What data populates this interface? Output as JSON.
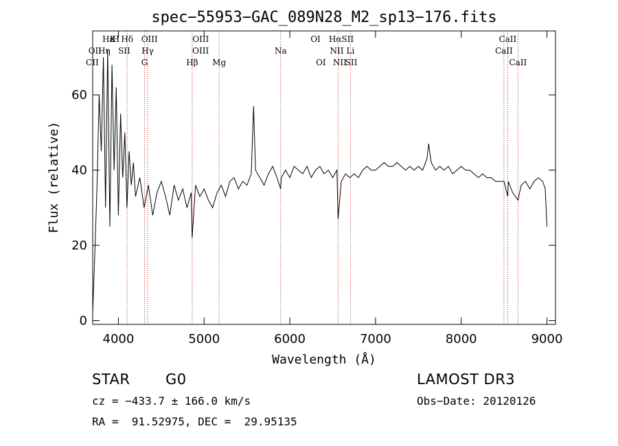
{
  "chart_data": {
    "type": "line",
    "title": "spec−55953−GAC_089N28_M2_sp13−176.fits",
    "xlabel": "Wavelength (Å)",
    "ylabel": "Flux (relative)",
    "xlim": [
      3700,
      9100
    ],
    "ylim": [
      -1,
      77
    ],
    "x_ticks": [
      4000,
      5000,
      6000,
      7000,
      8000,
      9000
    ],
    "x_tick_labels": [
      "4000",
      "5000",
      "6000",
      "7000",
      "8000",
      "9000"
    ],
    "y_ticks": [
      0,
      20,
      40,
      60
    ],
    "y_tick_labels": [
      "0",
      "20",
      "40",
      "60"
    ],
    "line_color": "#000000",
    "line_marker_color": "#b22222",
    "series": [
      {
        "name": "flux",
        "x": [
          3700,
          3725,
          3750,
          3775,
          3800,
          3825,
          3850,
          3875,
          3900,
          3925,
          3950,
          3975,
          4000,
          4025,
          4050,
          4075,
          4100,
          4125,
          4150,
          4175,
          4200,
          4250,
          4300,
          4350,
          4400,
          4450,
          4500,
          4550,
          4600,
          4650,
          4700,
          4750,
          4800,
          4850,
          4860,
          4900,
          4950,
          5000,
          5050,
          5100,
          5150,
          5200,
          5250,
          5300,
          5350,
          5400,
          5450,
          5500,
          5550,
          5577,
          5600,
          5650,
          5700,
          5750,
          5800,
          5850,
          5893,
          5900,
          5950,
          6000,
          6050,
          6100,
          6150,
          6200,
          6250,
          6300,
          6350,
          6400,
          6450,
          6500,
          6550,
          6563,
          6600,
          6650,
          6700,
          6750,
          6800,
          6850,
          6900,
          6950,
          7000,
          7050,
          7100,
          7150,
          7200,
          7250,
          7300,
          7350,
          7400,
          7450,
          7500,
          7550,
          7600,
          7620,
          7650,
          7700,
          7750,
          7800,
          7850,
          7900,
          7950,
          8000,
          8050,
          8100,
          8150,
          8200,
          8250,
          8300,
          8350,
          8400,
          8450,
          8500,
          8542,
          8550,
          8600,
          8662,
          8700,
          8750,
          8800,
          8850,
          8900,
          8950,
          8980,
          9000
        ],
        "values": [
          2,
          18,
          35,
          60,
          45,
          70,
          30,
          72,
          25,
          68,
          40,
          62,
          28,
          55,
          38,
          50,
          30,
          45,
          36,
          42,
          33,
          38,
          30,
          36,
          28,
          34,
          37,
          33,
          28,
          36,
          32,
          35,
          30,
          34,
          22,
          36,
          33,
          35,
          32,
          30,
          34,
          36,
          33,
          37,
          38,
          35,
          37,
          36,
          39,
          57,
          40,
          38,
          36,
          39,
          41,
          38,
          35,
          38,
          40,
          38,
          41,
          40,
          39,
          41,
          38,
          40,
          41,
          39,
          40,
          38,
          40,
          27,
          37,
          39,
          38,
          39,
          38,
          40,
          41,
          40,
          40,
          41,
          42,
          41,
          41,
          42,
          41,
          40,
          41,
          40,
          41,
          40,
          43,
          47,
          42,
          40,
          41,
          40,
          41,
          39,
          40,
          41,
          40,
          40,
          39,
          38,
          39,
          38,
          38,
          37,
          37,
          37,
          33,
          37,
          34,
          32,
          36,
          37,
          35,
          37,
          38,
          37,
          35,
          25
        ]
      }
    ],
    "lines": [
      {
        "name": "Hδ",
        "wavelength": 4102
      },
      {
        "name": "Hγ",
        "wavelength": 4341
      },
      {
        "name": "Hβ",
        "wavelength": 4861
      },
      {
        "name": "Hα",
        "wavelength": 6563
      },
      {
        "name": "Na",
        "wavelength": 5893
      },
      {
        "name": "Mg",
        "wavelength": 5175
      },
      {
        "name": "G",
        "wavelength": 4305
      },
      {
        "name": "Li",
        "wavelength": 6708
      },
      {
        "name": "CaII",
        "wavelength": 8498
      },
      {
        "name": "CaII",
        "wavelength": 8542
      },
      {
        "name": "CaII",
        "wavelength": 8662
      }
    ],
    "top_labels_row1": [
      "Hε",
      "K",
      "H",
      "Hδ",
      "OIII",
      "OIII",
      "OI",
      "HαSII",
      "CaII"
    ],
    "top_labels_row2": [
      "OII",
      "Hη",
      "SII",
      "Hγ",
      "OIII",
      "Na",
      "NII",
      "Li",
      "CaII"
    ],
    "top_labels_row3": [
      "CII",
      "G",
      "Hβ",
      "Mg",
      "OI",
      "NII",
      "SII",
      "CaII"
    ]
  },
  "info": {
    "object_class": "STAR",
    "subclass": "G0",
    "survey": "LAMOST DR3",
    "cz": "cz = −433.7 ± 166.0 km/s",
    "obs_date": "Obs−Date: 20120126",
    "radec": "RA =  91.52975, DEC =  29.95135"
  }
}
